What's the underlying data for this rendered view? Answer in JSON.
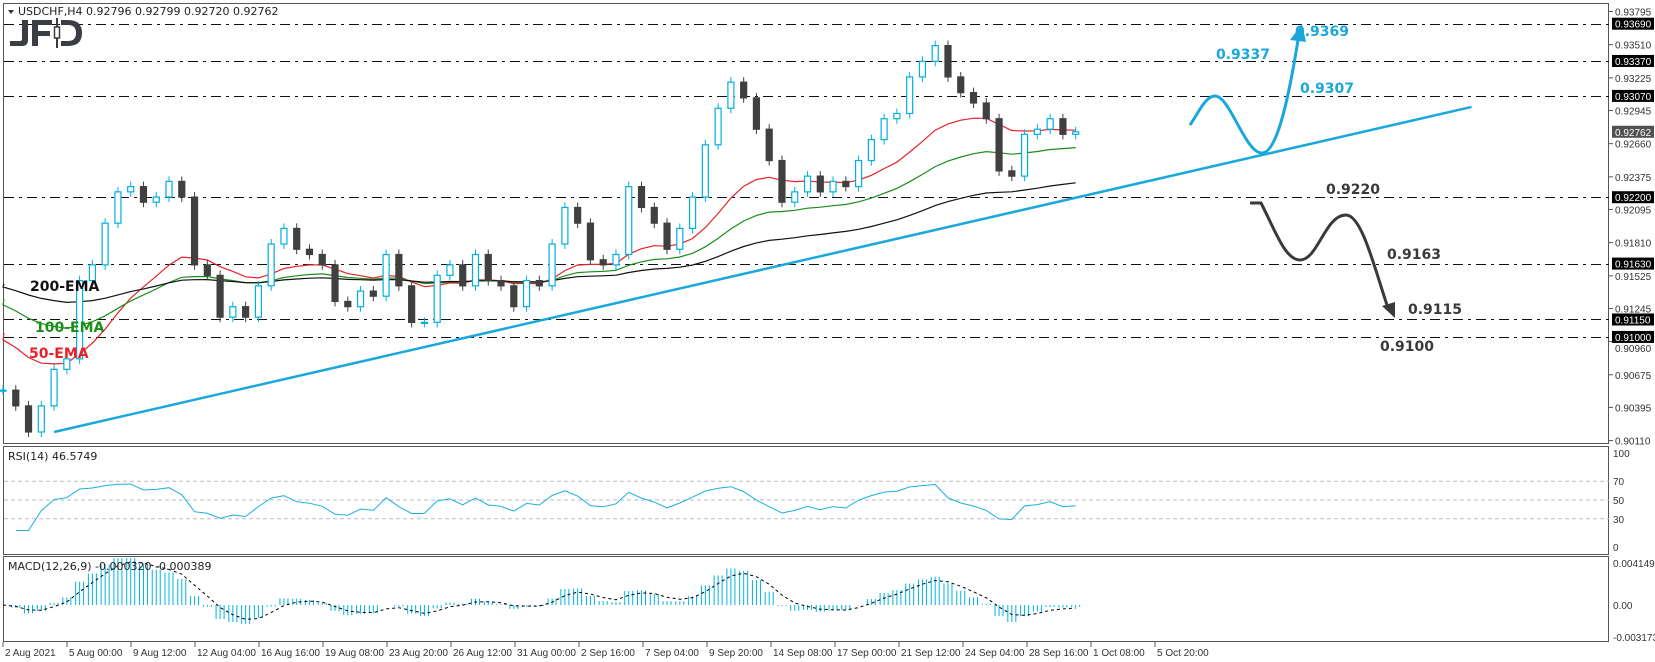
{
  "header": {
    "symbol": "USDCHF,H4",
    "ohlc": "0.92796 0.92799 0.92720 0.92762"
  },
  "logo": "JFD",
  "colors": {
    "bull": "#00b0e0",
    "bear": "#404040",
    "ema50": "#e8202a",
    "ema100": "#1a8f1a",
    "ema200": "#111111",
    "trendline": "#1aa8dc",
    "bull_scenario": "#1aa8dc",
    "bear_scenario": "#3a3a3a",
    "rsi": "#1ab0e0",
    "macd_hist": "#00b4e0",
    "macd_signal": "#000000"
  },
  "chart_data": {
    "type": "candlestick",
    "symbol": "USDCHF",
    "timeframe": "H4",
    "price_axis": {
      "range": [
        0.9011,
        0.93795
      ],
      "ticks": [
        "0.93795",
        "0.93510",
        "0.93225",
        "0.92945",
        "0.92660",
        "0.92375",
        "0.92095",
        "0.91810",
        "0.91525",
        "0.91245",
        "0.90960",
        "0.90675",
        "0.90395",
        "0.90110"
      ],
      "current_price": "0.92762"
    },
    "time_axis": {
      "ticks": [
        "2 Aug 2021",
        "5 Aug 00:00",
        "9 Aug 12:00",
        "12 Aug 04:00",
        "16 Aug 16:00",
        "19 Aug 08:00",
        "23 Aug 20:00",
        "26 Aug 12:00",
        "31 Aug 00:00",
        "2 Sep 16:00",
        "7 Sep 04:00",
        "9 Sep 20:00",
        "14 Sep 08:00",
        "17 Sep 00:00",
        "21 Sep 12:00",
        "24 Sep 04:00",
        "28 Sep 16:00",
        "1 Oct 08:00",
        "5 Oct 20:00"
      ]
    },
    "closes": [
      0.90543,
      0.90408,
      0.90184,
      0.90408,
      0.90722,
      0.90812,
      0.91484,
      0.91619,
      0.91977,
      0.92246,
      0.92291,
      0.92157,
      0.92201,
      0.92336,
      0.92201,
      0.91619,
      0.91529,
      0.9117,
      0.9126,
      0.9117,
      0.91439,
      0.91798,
      0.91932,
      0.91753,
      0.91708,
      0.91619,
      0.91305,
      0.9126,
      0.91394,
      0.9135,
      0.91708,
      0.91439,
      0.91125,
      0.91125,
      0.91529,
      0.91619,
      0.91439,
      0.91708,
      0.91484,
      0.91439,
      0.9126,
      0.91484,
      0.91439,
      0.91798,
      0.92112,
      0.91977,
      0.91663,
      0.91619,
      0.91708,
      0.92291,
      0.92112,
      0.91977,
      0.91753,
      0.91932,
      0.92201,
      0.9265,
      0.92964,
      0.93188,
      0.93053,
      0.92784,
      0.92515,
      0.92157,
      0.92246,
      0.92381,
      0.92246,
      0.92336,
      0.92291,
      0.92515,
      0.92695,
      0.92874,
      0.92919,
      0.93233,
      0.93367,
      0.93502,
      0.93233,
      0.93098,
      0.93009,
      0.92874,
      0.92426,
      0.92381,
      0.9274,
      0.92784,
      0.92874,
      0.9274,
      0.92762
    ],
    "emas": [
      {
        "name": "50-EMA",
        "start": 0.91033,
        "color_key": "ema50"
      },
      {
        "name": "100-EMA",
        "start": 0.91323,
        "color_key": "ema100"
      },
      {
        "name": "200-EMA",
        "start": 0.91457,
        "color_key": "ema200"
      }
    ],
    "levels": [
      {
        "price": 0.9369,
        "axis_label": "0.93690",
        "label": "0.9369",
        "side": "bull"
      },
      {
        "price": 0.9337,
        "axis_label": "0.93370",
        "label": "0.9337",
        "side": "bull"
      },
      {
        "price": 0.9307,
        "axis_label": "0.93070",
        "label": "0.9307",
        "side": "bull"
      },
      {
        "price": 0.922,
        "axis_label": "0.92200",
        "label": "0.9220",
        "side": "bear"
      },
      {
        "price": 0.9163,
        "axis_label": "0.91630",
        "label": "0.9163",
        "side": "bear"
      },
      {
        "price": 0.9115,
        "axis_label": "0.91150",
        "label": "0.9115",
        "side": "bear"
      },
      {
        "price": 0.91,
        "axis_label": "0.91000",
        "label": "0.9100",
        "side": "bear"
      }
    ],
    "trendline": {
      "start_bar": 4,
      "start_price": 0.90184,
      "end_bar": 115,
      "end_price": 0.92975
    },
    "rsi": {
      "label": "RSI(14) 46.5749",
      "range": [
        0,
        100
      ],
      "levels": [
        70,
        50,
        30
      ],
      "ticks": [
        "100",
        "70",
        "50",
        "30",
        "0"
      ]
    },
    "macd": {
      "label": "MACD(12,26,9) -0.000320 -0.000389",
      "ticks": [
        "0.004149",
        "0.00",
        "-0.003173"
      ],
      "range": [
        -0.003173,
        0.004149
      ]
    }
  }
}
